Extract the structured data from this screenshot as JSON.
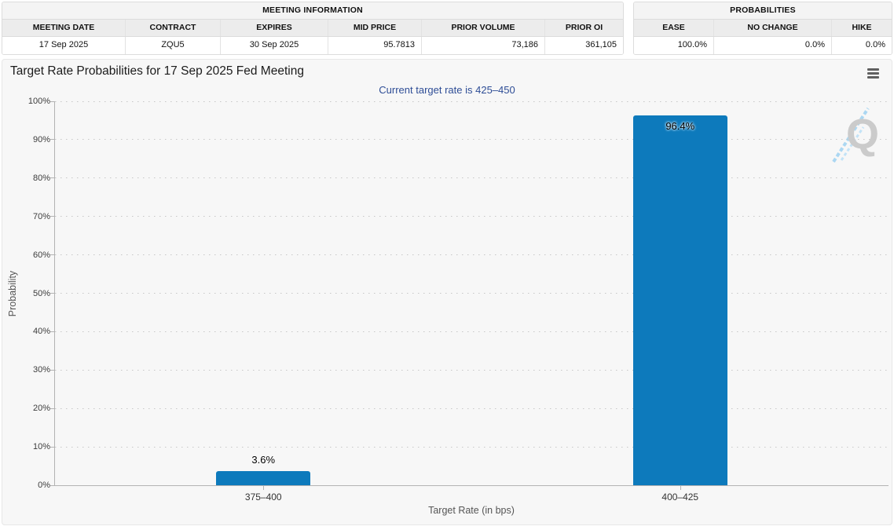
{
  "meeting_info": {
    "title": "MEETING INFORMATION",
    "columns": [
      "MEETING DATE",
      "CONTRACT",
      "EXPIRES",
      "MID PRICE",
      "PRIOR VOLUME",
      "PRIOR OI"
    ],
    "values": [
      "17 Sep 2025",
      "ZQU5",
      "30 Sep 2025",
      "95.7813",
      "73,186",
      "361,105"
    ]
  },
  "probabilities": {
    "title": "PROBABILITIES",
    "columns": [
      "EASE",
      "NO CHANGE",
      "HIKE"
    ],
    "values": [
      "100.0%",
      "0.0%",
      "0.0%"
    ]
  },
  "chart": {
    "title": "Target Rate Probabilities for 17 Sep 2025 Fed Meeting",
    "subtitle": "Current target rate is 425–450",
    "subtitle_color": "#2e4d96",
    "menu_icon": "hamburger-menu-icon",
    "watermark_letter": "Q"
  },
  "chart_data": {
    "type": "bar",
    "title": "Target Rate Probabilities for 17 Sep 2025 Fed Meeting",
    "subtitle": "Current target rate is 425–450",
    "categories": [
      "375–400",
      "400–425"
    ],
    "values": [
      3.6,
      96.4
    ],
    "value_labels": [
      "3.6%",
      "96.4%"
    ],
    "xlabel": "Target Rate (in bps)",
    "ylabel": "Probability",
    "ylim": [
      0,
      100
    ],
    "ytick_labels": [
      "0%",
      "10%",
      "20%",
      "30%",
      "40%",
      "50%",
      "60%",
      "70%",
      "80%",
      "90%",
      "100%"
    ],
    "bar_color": "#0d7abc",
    "grid": "dotted horizontal",
    "legend": "none"
  }
}
